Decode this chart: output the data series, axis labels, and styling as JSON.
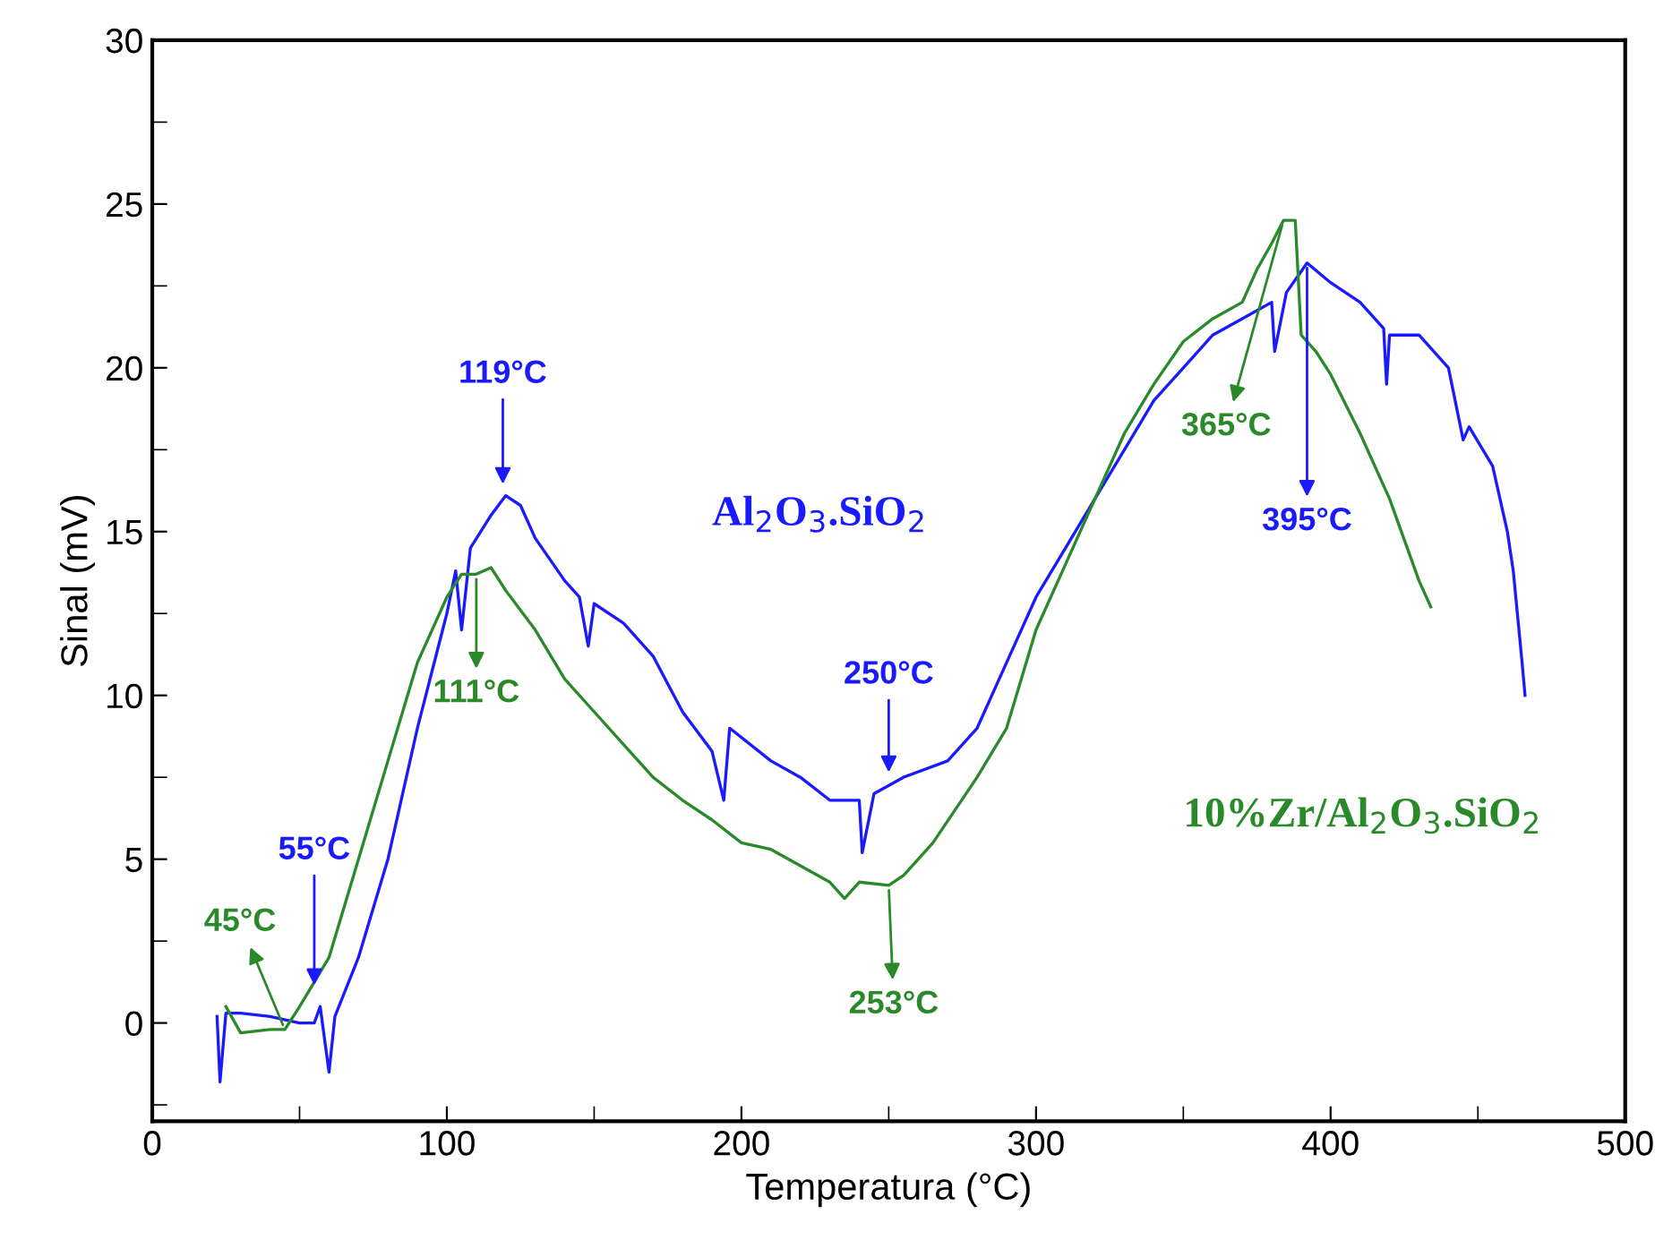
{
  "chart_data": {
    "type": "line",
    "xlabel": "Temperatura (°C)",
    "ylabel": "Sinal (mV)",
    "xlim": [
      0,
      500
    ],
    "xticks": [
      0,
      100,
      200,
      300,
      400,
      500
    ],
    "ylim": [
      -3,
      30
    ],
    "yticks": [
      0,
      5,
      10,
      15,
      20,
      25,
      30
    ],
    "grid": false,
    "legend": false,
    "line_style": "solid",
    "marker": "none",
    "series": [
      {
        "name": "Al$_{2}$O$_{3}$.SiO$_{2}$",
        "color": "#1a1aff",
        "x": [
          22,
          23,
          25,
          30,
          40,
          50,
          55,
          57,
          60,
          62,
          70,
          80,
          90,
          100,
          103,
          105,
          108,
          115,
          120,
          125,
          130,
          140,
          145,
          148,
          150,
          160,
          170,
          180,
          190,
          194,
          196,
          210,
          220,
          230,
          240,
          241,
          245,
          255,
          270,
          280,
          290,
          300,
          310,
          320,
          330,
          340,
          350,
          360,
          370,
          380,
          381,
          385,
          392,
          400,
          410,
          418,
          419,
          420,
          430,
          440,
          445,
          447,
          455,
          460,
          462,
          465,
          466
        ],
        "values": [
          0.2,
          -1.8,
          0.3,
          0.3,
          0.2,
          0,
          0,
          0.5,
          -1.5,
          0.2,
          2,
          5,
          9,
          12.5,
          13.8,
          12,
          14.5,
          15.5,
          16.1,
          15.8,
          14.8,
          13.5,
          13,
          11.5,
          12.8,
          12.2,
          11.2,
          9.5,
          8.3,
          6.8,
          9,
          8,
          7.5,
          6.8,
          6.8,
          5.2,
          7,
          7.5,
          8,
          9,
          11,
          13,
          14.5,
          16,
          17.5,
          19,
          20,
          21,
          21.5,
          22,
          20.5,
          22.3,
          23.2,
          22.6,
          22,
          21.2,
          19.5,
          21,
          21,
          20,
          17.8,
          18.2,
          17,
          15,
          13.8,
          11,
          10
        ]
      },
      {
        "name": "10%Zr/Al$_{2}$O$_{3}$.SiO$_{2}$",
        "color": "#2a8a2a",
        "x": [
          25,
          30,
          40,
          45,
          50,
          60,
          70,
          80,
          90,
          100,
          105,
          110,
          115,
          120,
          130,
          140,
          150,
          160,
          170,
          180,
          190,
          200,
          210,
          220,
          230,
          235,
          240,
          250,
          255,
          265,
          280,
          290,
          300,
          310,
          320,
          330,
          340,
          350,
          360,
          370,
          375,
          380,
          384,
          388,
          390,
          395,
          400,
          410,
          420,
          430,
          434
        ],
        "values": [
          0.5,
          -0.3,
          -0.2,
          -0.2,
          0.5,
          2,
          5,
          8,
          11,
          13,
          13.7,
          13.7,
          13.9,
          13.2,
          12,
          10.5,
          9.5,
          8.5,
          7.5,
          6.8,
          6.2,
          5.5,
          5.3,
          4.8,
          4.3,
          3.8,
          4.3,
          4.2,
          4.5,
          5.5,
          7.5,
          9,
          12,
          14,
          16,
          18,
          19.5,
          20.8,
          21.5,
          22,
          23,
          23.8,
          24.5,
          24.5,
          21,
          20.5,
          19.8,
          18,
          16,
          13.5,
          12.7
        ]
      }
    ],
    "annotations": [
      {
        "text": "119°C",
        "x": 119,
        "y": 16.3
      },
      {
        "text": "111°C",
        "x": 110,
        "y": 13.7
      },
      {
        "text": "55°C",
        "x": 55,
        "y": 1
      },
      {
        "text": "45°C",
        "x": 45,
        "y": -0.2
      },
      {
        "text": "250°C",
        "x": 250,
        "y": 7.5
      },
      {
        "text": "253°C",
        "x": 250,
        "y": 4.2
      },
      {
        "text": "365°C",
        "x": 384,
        "y": 24.5
      },
      {
        "text": "395°C",
        "x": 392,
        "y": 23.2
      }
    ]
  }
}
